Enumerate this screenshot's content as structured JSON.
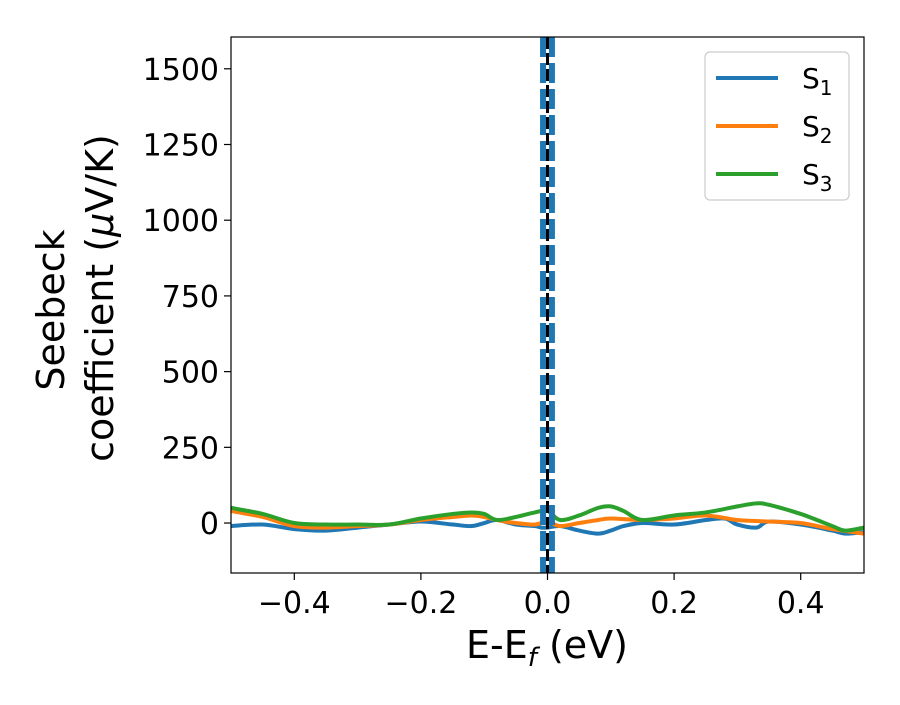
{
  "chart_data": {
    "type": "line",
    "title": "",
    "xlabel": "E-E",
    "xlabel_sub": "f",
    "xlabel_unit": " (eV)",
    "ylabel_line1": "Seebeck",
    "ylabel_line2_pre": "coefficient  (",
    "ylabel_mu": "μ",
    "ylabel_line2_post": "V/K)",
    "xlim": [
      -0.5,
      0.5
    ],
    "ylim": [
      -165,
      1605
    ],
    "x_ticks": [
      -0.4,
      -0.2,
      0.0,
      0.2,
      0.4
    ],
    "x_tick_labels": [
      "−0.4",
      "−0.2",
      "0.0",
      "0.2",
      "0.4"
    ],
    "y_ticks": [
      0,
      250,
      500,
      750,
      1000,
      1250,
      1500
    ],
    "y_tick_labels": [
      "0",
      "250",
      "500",
      "750",
      "1000",
      "1250",
      "1500"
    ],
    "grid": false,
    "legend_position": "top-right",
    "fermi_marker_x": 0.0,
    "fermi_marker_color": "#000000",
    "divergence_lines": [
      {
        "x": -0.007,
        "color": "#1f77b4",
        "style": "dashed"
      },
      {
        "x": 0.007,
        "color": "#1f77b4",
        "style": "dashed"
      }
    ],
    "series": [
      {
        "name": "S",
        "name_sub": "1",
        "color": "#1f77b4",
        "x": [
          -0.5,
          -0.45,
          -0.4,
          -0.35,
          -0.3,
          -0.25,
          -0.2,
          -0.15,
          -0.12,
          -0.1,
          -0.08,
          -0.05,
          -0.02,
          -0.01,
          0.0,
          0.02,
          0.05,
          0.08,
          0.1,
          0.12,
          0.15,
          0.2,
          0.25,
          0.28,
          0.3,
          0.33,
          0.35,
          0.4,
          0.45,
          0.47,
          0.5
        ],
        "y": [
          -10,
          -5,
          -20,
          -25,
          -15,
          -5,
          5,
          -5,
          -10,
          0,
          10,
          -5,
          -10,
          -15,
          -15,
          -10,
          -25,
          -35,
          -25,
          -10,
          0,
          -5,
          10,
          15,
          -5,
          -15,
          5,
          -5,
          -25,
          -35,
          -30
        ]
      },
      {
        "name": "S",
        "name_sub": "2",
        "color": "#ff7f0e",
        "x": [
          -0.5,
          -0.45,
          -0.4,
          -0.35,
          -0.3,
          -0.25,
          -0.2,
          -0.15,
          -0.12,
          -0.1,
          -0.08,
          -0.05,
          -0.02,
          0.0,
          0.02,
          0.05,
          0.08,
          0.1,
          0.15,
          0.2,
          0.25,
          0.3,
          0.35,
          0.4,
          0.45,
          0.5
        ],
        "y": [
          40,
          20,
          -10,
          -15,
          -10,
          -5,
          10,
          20,
          25,
          20,
          10,
          0,
          -5,
          5,
          -10,
          0,
          10,
          15,
          10,
          15,
          25,
          10,
          5,
          0,
          -20,
          -35
        ]
      },
      {
        "name": "S",
        "name_sub": "3",
        "color": "#2ca02c",
        "x": [
          -0.5,
          -0.45,
          -0.4,
          -0.35,
          -0.3,
          -0.25,
          -0.2,
          -0.15,
          -0.12,
          -0.1,
          -0.08,
          -0.05,
          -0.02,
          0.0,
          0.02,
          0.05,
          0.08,
          0.1,
          0.12,
          0.15,
          0.2,
          0.25,
          0.3,
          0.33,
          0.35,
          0.4,
          0.45,
          0.47,
          0.5
        ],
        "y": [
          50,
          30,
          0,
          -5,
          -5,
          -5,
          15,
          30,
          35,
          30,
          10,
          20,
          35,
          40,
          10,
          25,
          50,
          55,
          40,
          10,
          25,
          35,
          55,
          65,
          60,
          30,
          -10,
          -25,
          -15
        ]
      }
    ]
  }
}
